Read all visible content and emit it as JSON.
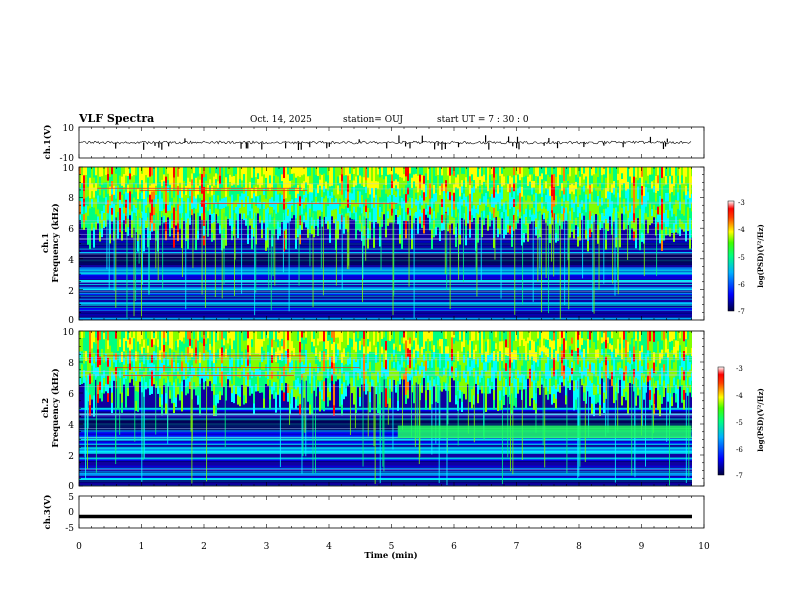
{
  "header": {
    "title": "VLF Spectra",
    "date": "Oct. 14, 2025",
    "station": "station= OUJ",
    "start": "start  UT =   7 : 30 : 0"
  },
  "chart_data": [
    {
      "id": "ch1_waveform",
      "type": "line",
      "ylabel": "ch.1(V)",
      "ylim": [
        -10,
        10
      ],
      "yticks": [
        "10",
        "-10"
      ],
      "xlim": [
        0,
        10
      ],
      "description_values": {
        "baseline": 0,
        "noise_amplitude": 1.5,
        "spike_amplitude": 5
      }
    },
    {
      "id": "ch1_spectrogram",
      "type": "heatmap",
      "ylabel": "Frequency (kHz)",
      "ylabel2": "ch.1",
      "ylim": [
        0,
        10
      ],
      "yticks": [
        "0",
        "2",
        "4",
        "6",
        "8",
        "10"
      ],
      "xlim": [
        0,
        10
      ],
      "colorbar": {
        "range": [
          -7,
          -3
        ],
        "ticks": [
          "-3",
          "-4",
          "-5",
          "-6",
          "-7"
        ],
        "label": "log(PSD)(V²/Hz)"
      }
    },
    {
      "id": "ch2_spectrogram",
      "type": "heatmap",
      "ylabel": "Frequency (kHz)",
      "ylabel2": "ch.2",
      "ylim": [
        0,
        10
      ],
      "yticks": [
        "0",
        "2",
        "4",
        "6",
        "8",
        "10"
      ],
      "xlim": [
        0,
        10
      ],
      "colorbar": {
        "range": [
          -7,
          -3
        ],
        "ticks": [
          "-3",
          "-4",
          "-5",
          "-6",
          "-7"
        ],
        "label": "log(PSD)(V²/Hz)"
      },
      "band": {
        "from_min": 5.1,
        "to_min": 9.8,
        "freq_khz": 3.5
      }
    },
    {
      "id": "ch3_waveform",
      "type": "line",
      "ylabel": "ch.3(V)",
      "ylim": [
        -5,
        5
      ],
      "yticks": [
        "5",
        "0",
        "-5"
      ],
      "xlim": [
        0,
        10
      ],
      "level": -1.4
    }
  ],
  "xaxis": {
    "label": "Time  (min)",
    "ticks": [
      "0",
      "1",
      "2",
      "3",
      "4",
      "5",
      "6",
      "7",
      "8",
      "9",
      "10"
    ],
    "range": [
      0,
      10
    ]
  },
  "colors": {
    "bg": "#000080",
    "cmap": [
      "#000070",
      "#0000ff",
      "#00a0ff",
      "#00ffff",
      "#00ff80",
      "#80ff00",
      "#ffff00",
      "#ff8000",
      "#ff0000",
      "#ffffff"
    ]
  }
}
